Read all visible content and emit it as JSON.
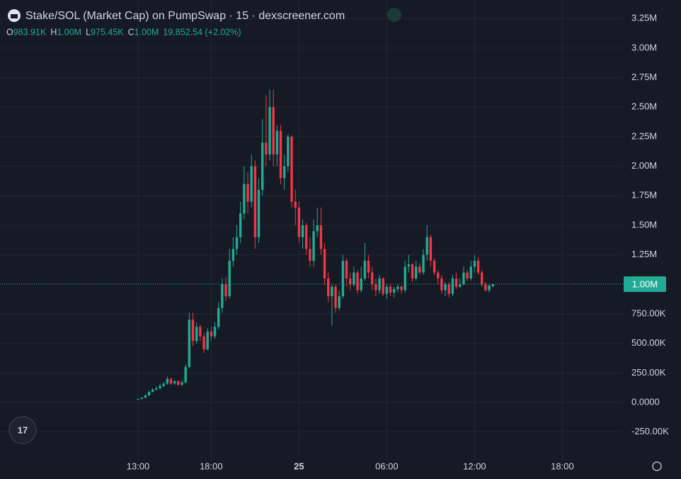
{
  "header": {
    "title": "Stake/SOL (Market Cap) on PumpSwap · 15 · dexscreener.com",
    "ohlc": [
      {
        "key": "O",
        "value": "983.91K"
      },
      {
        "key": "H",
        "value": "1.00M"
      },
      {
        "key": "L",
        "value": "975.45K"
      },
      {
        "key": "C",
        "value": "1.00M"
      }
    ],
    "change": "19,852.54 (+2.02%)"
  },
  "chart_data": {
    "type": "candlestick",
    "x": [
      13,
      13.25,
      13.5,
      13.75,
      14,
      14.25,
      14.5,
      14.75,
      15,
      15.25,
      15.5,
      15.75,
      16,
      16.25,
      16.5,
      16.75,
      17,
      17.25,
      17.5,
      17.75,
      18,
      18.25,
      18.5,
      18.75,
      19,
      19.25,
      19.5,
      19.75,
      20,
      20.25,
      20.5,
      20.75,
      21,
      21.25,
      21.5,
      21.75,
      22,
      22.25,
      22.5,
      22.75,
      23,
      23.25,
      23.5,
      23.75,
      24,
      24.25,
      24.5,
      24.75,
      25,
      25.25,
      25.5,
      25.75,
      26,
      26.25,
      26.5,
      26.75,
      27,
      27.25,
      27.5,
      27.75,
      28,
      28.25,
      28.5,
      28.75,
      29,
      29.25,
      29.5,
      29.75,
      30,
      30.25,
      30.5,
      30.75,
      31,
      31.25,
      31.5,
      31.75,
      32,
      32.25,
      32.5,
      32.75,
      33,
      33.25,
      33.5,
      33.75,
      34,
      34.25,
      34.5,
      34.75,
      35,
      35.25,
      35.5,
      35.75,
      36,
      36.25,
      36.5,
      36.75,
      37,
      37.25
    ],
    "open": [
      25000,
      30000,
      40000,
      60000,
      90000,
      110000,
      120000,
      140000,
      160000,
      200000,
      160000,
      180000,
      150000,
      170000,
      300000,
      700000,
      520000,
      640000,
      560000,
      450000,
      600000,
      560000,
      640000,
      800000,
      1000000,
      900000,
      1200000,
      1300000,
      1400000,
      1600000,
      1850000,
      1700000,
      2000000,
      1400000,
      1800000,
      2200000,
      2100000,
      2500000,
      2100000,
      2300000,
      1900000,
      2000000,
      2250000,
      1700000,
      1650000,
      1400000,
      1500000,
      1300000,
      1200000,
      1450000,
      1500000,
      1300000,
      1050000,
      900000,
      980000,
      800000,
      900000,
      1200000,
      1050000,
      1000000,
      1100000,
      950000,
      1050000,
      1200000,
      1100000,
      1000000,
      950000,
      1050000,
      920000,
      980000,
      930000,
      960000,
      980000,
      950000,
      1150000,
      1170000,
      1050000,
      1150000,
      1100000,
      1250000,
      1400000,
      1200000,
      1100000,
      1050000,
      950000,
      1000000,
      920000,
      1050000,
      980000,
      1000000,
      1100000,
      1050000,
      1150000,
      1200000,
      1100000,
      1000000,
      950000,
      983910
    ],
    "high": [
      35000,
      45000,
      70000,
      100000,
      120000,
      140000,
      160000,
      170000,
      220000,
      210000,
      190000,
      190000,
      190000,
      320000,
      760000,
      760000,
      680000,
      660000,
      590000,
      630000,
      640000,
      680000,
      850000,
      1050000,
      1060000,
      1300000,
      1400000,
      1500000,
      1700000,
      2000000,
      1950000,
      2100000,
      2050000,
      1900000,
      2400000,
      2600000,
      2650000,
      2650000,
      2350000,
      2350000,
      2100000,
      2270000,
      2260000,
      1800000,
      1700000,
      1550000,
      1520000,
      1400000,
      1550000,
      1650000,
      1650000,
      1350000,
      1100000,
      1000000,
      1000000,
      950000,
      1250000,
      1220000,
      1100000,
      1150000,
      1120000,
      1150000,
      1350000,
      1250000,
      1150000,
      1050000,
      1080000,
      1060000,
      1000000,
      1000000,
      980000,
      1000000,
      990000,
      1200000,
      1250000,
      1180000,
      1200000,
      1180000,
      1300000,
      1500000,
      1420000,
      1220000,
      1120000,
      1080000,
      1020000,
      1020000,
      1080000,
      1100000,
      1050000,
      1150000,
      1120000,
      1200000,
      1250000,
      1230000,
      1120000,
      1020000,
      1000000,
      1004000
    ],
    "low": [
      20000,
      28000,
      38000,
      55000,
      85000,
      100000,
      110000,
      130000,
      150000,
      150000,
      150000,
      140000,
      140000,
      160000,
      290000,
      480000,
      500000,
      520000,
      420000,
      440000,
      520000,
      540000,
      620000,
      760000,
      860000,
      880000,
      1150000,
      1250000,
      1350000,
      1550000,
      1600000,
      1650000,
      1300000,
      1350000,
      1750000,
      2000000,
      2050000,
      2000000,
      2000000,
      1850000,
      1800000,
      1950000,
      1650000,
      1500000,
      1350000,
      1300000,
      1250000,
      1150000,
      1150000,
      1400000,
      1250000,
      1000000,
      850000,
      650000,
      760000,
      780000,
      880000,
      980000,
      950000,
      980000,
      920000,
      930000,
      1030000,
      1050000,
      950000,
      900000,
      920000,
      900000,
      880000,
      900000,
      890000,
      930000,
      920000,
      930000,
      1100000,
      1020000,
      1030000,
      1080000,
      1080000,
      1200000,
      1150000,
      1080000,
      1000000,
      920000,
      900000,
      890000,
      900000,
      960000,
      970000,
      990000,
      1030000,
      1030000,
      1100000,
      1080000,
      980000,
      940000,
      930000,
      975450
    ],
    "close": [
      30000,
      40000,
      60000,
      90000,
      110000,
      120000,
      140000,
      160000,
      200000,
      160000,
      180000,
      150000,
      170000,
      300000,
      700000,
      520000,
      640000,
      560000,
      450000,
      600000,
      560000,
      640000,
      800000,
      1000000,
      900000,
      1200000,
      1300000,
      1400000,
      1600000,
      1850000,
      1700000,
      2000000,
      1400000,
      1800000,
      2200000,
      2100000,
      2500000,
      2100000,
      2300000,
      1900000,
      2000000,
      2250000,
      1700000,
      1650000,
      1400000,
      1500000,
      1300000,
      1200000,
      1450000,
      1500000,
      1300000,
      1050000,
      900000,
      980000,
      800000,
      900000,
      1200000,
      1050000,
      1000000,
      1100000,
      950000,
      1050000,
      1200000,
      1100000,
      1000000,
      950000,
      1050000,
      920000,
      980000,
      930000,
      960000,
      980000,
      950000,
      1150000,
      1170000,
      1050000,
      1150000,
      1100000,
      1250000,
      1400000,
      1200000,
      1100000,
      1050000,
      950000,
      1000000,
      920000,
      1050000,
      980000,
      1000000,
      1100000,
      1050000,
      1150000,
      1200000,
      1100000,
      1000000,
      950000,
      990000,
      1002000
    ],
    "up_color": "#22ab94",
    "down_color": "#f23645",
    "xlim": [
      3.565,
      46.14
    ],
    "xticks": [
      {
        "value": 13,
        "label": "13:00"
      },
      {
        "value": 18,
        "label": "18:00"
      },
      {
        "value": 24,
        "label": "25"
      },
      {
        "value": 30,
        "label": "06:00"
      },
      {
        "value": 36,
        "label": "12:00"
      },
      {
        "value": 42,
        "label": "18:00"
      }
    ],
    "ylim": [
      -491900,
      3407400
    ],
    "yticks": [
      {
        "value": 3250000,
        "label": "3.25M"
      },
      {
        "value": 3000000,
        "label": "3.00M"
      },
      {
        "value": 2750000,
        "label": "2.75M"
      },
      {
        "value": 2500000,
        "label": "2.50M"
      },
      {
        "value": 2250000,
        "label": "2.25M"
      },
      {
        "value": 2000000,
        "label": "2.00M"
      },
      {
        "value": 1750000,
        "label": "1.75M"
      },
      {
        "value": 1500000,
        "label": "1.50M"
      },
      {
        "value": 1250000,
        "label": "1.25M"
      },
      {
        "value": 750000,
        "label": "750.00K"
      },
      {
        "value": 500000,
        "label": "500.00K"
      },
      {
        "value": 250000,
        "label": "250.00K"
      },
      {
        "value": 0,
        "label": "0.0000"
      },
      {
        "value": -250000,
        "label": "-250.00K"
      }
    ],
    "grid": true,
    "last_price": {
      "value": 1002000,
      "label": "1.00M"
    }
  }
}
